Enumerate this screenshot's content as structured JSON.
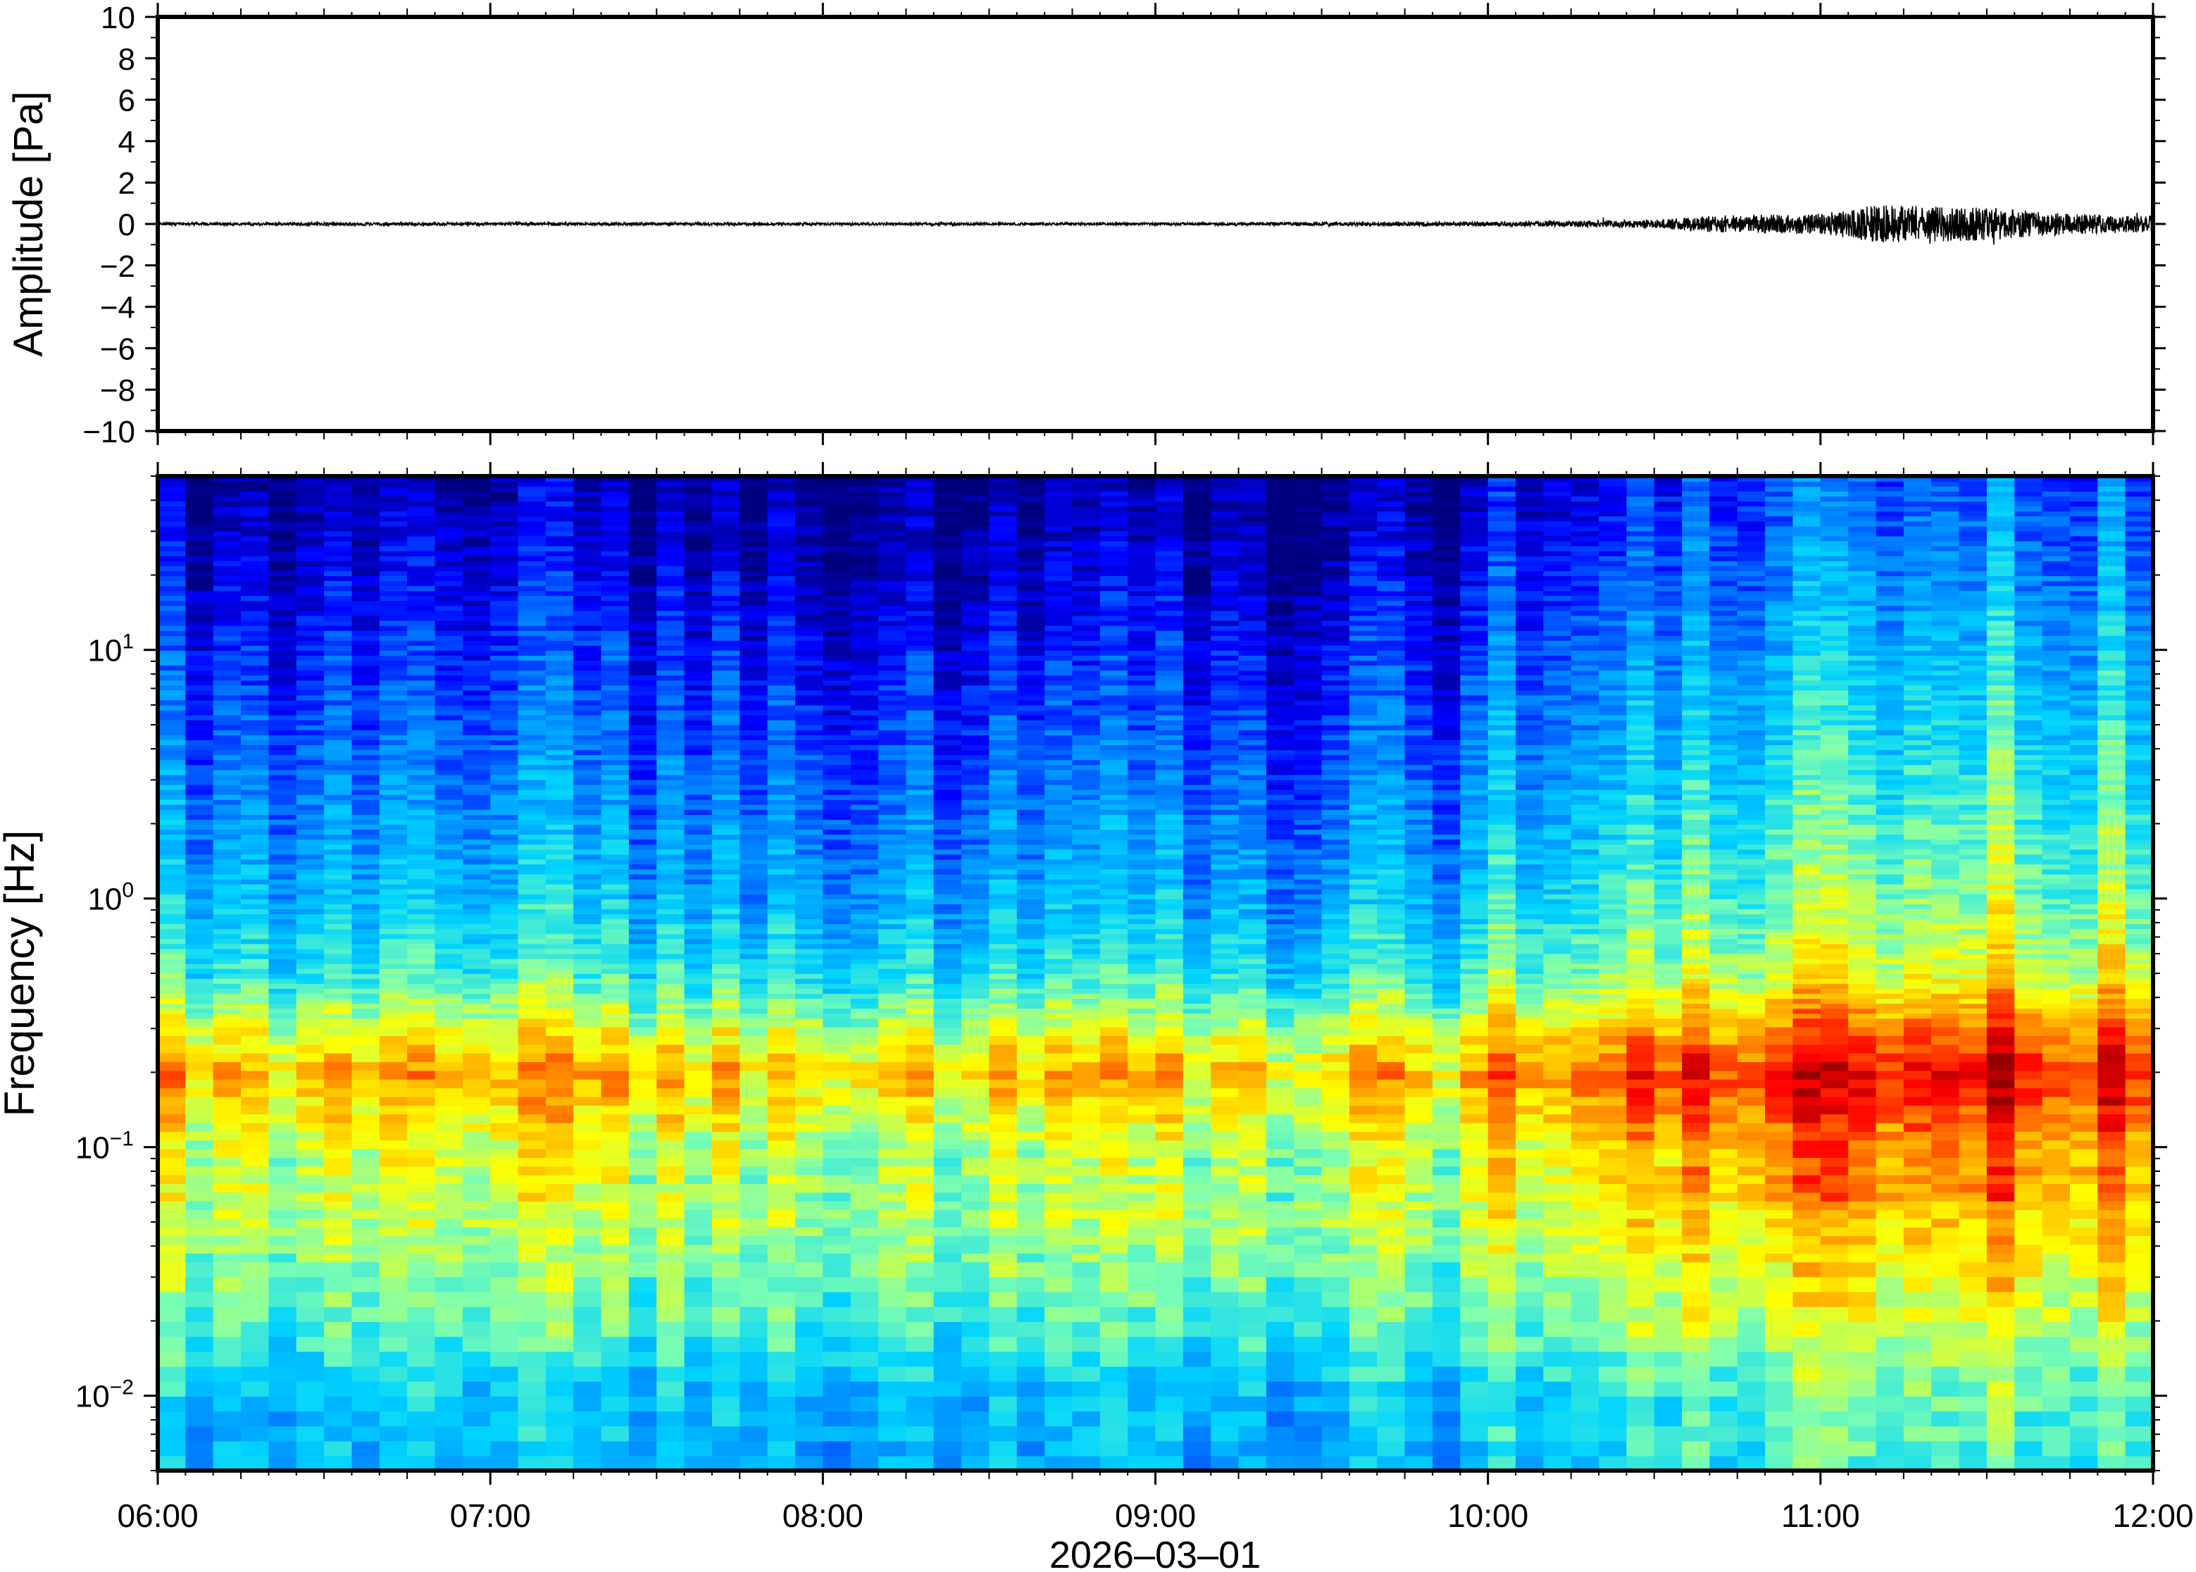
{
  "chart_data": [
    {
      "type": "line",
      "ylabel": "Amplitude [Pa]",
      "ylim": [
        -10,
        10
      ],
      "y_ticks": [
        10,
        8,
        6,
        4,
        2,
        0,
        -2,
        -4,
        -6,
        -8,
        -10
      ],
      "y_tick_labels": [
        "10",
        "8",
        "6",
        "4",
        "2",
        "0",
        "−2",
        "−4",
        "−6",
        "−8",
        "−10"
      ],
      "xlim": [
        "06:00",
        "12:00"
      ],
      "grid": false,
      "line_color": "#000000",
      "envelope": {
        "time": [
          "06:00",
          "07:00",
          "08:00",
          "09:00",
          "10:00",
          "10:30",
          "10:40",
          "11:00",
          "11:10",
          "11:30",
          "11:45",
          "12:00"
        ],
        "amplitude": [
          0.07,
          0.07,
          0.06,
          0.06,
          0.1,
          0.2,
          0.4,
          0.5,
          0.9,
          0.8,
          0.5,
          0.4
        ]
      }
    },
    {
      "type": "heatmap",
      "ylabel": "Frequency [Hz]",
      "xlabel": "2026–03–01",
      "y_scale": "log",
      "ylim": [
        0.005,
        50
      ],
      "y_ticks": [
        {
          "base": "10",
          "exp": "1"
        },
        {
          "base": "10",
          "exp": "0"
        },
        {
          "base": "10",
          "exp": "−1"
        },
        {
          "base": "10",
          "exp": "−2"
        }
      ],
      "x_tick_labels": [
        "06:00",
        "07:00",
        "08:00",
        "09:00",
        "10:00",
        "11:00",
        "12:00"
      ],
      "xlim": [
        "06:00",
        "12:00"
      ],
      "colormap": "jet",
      "colors": [
        "#00007f",
        "#0000ff",
        "#007fff",
        "#00d4ff",
        "#7fffaf",
        "#ffff00",
        "#ff8c00",
        "#ff0000",
        "#7f0000"
      ],
      "power_profile": {
        "time": [
          "06:00",
          "07:00",
          "08:00",
          "09:00",
          "09:55",
          "10:00",
          "10:30",
          "11:00",
          "11:30",
          "12:00"
        ],
        "level_offset": [
          0.0,
          0.02,
          0.0,
          -0.03,
          -0.02,
          0.08,
          0.12,
          0.2,
          0.22,
          0.18
        ]
      },
      "spectrum_profile": {
        "frequency": [
          0.005,
          0.01,
          0.02,
          0.05,
          0.1,
          0.2,
          0.3,
          0.5,
          1,
          3,
          10,
          30,
          50
        ],
        "relative_power": [
          0.32,
          0.35,
          0.46,
          0.55,
          0.57,
          0.7,
          0.58,
          0.42,
          0.33,
          0.24,
          0.15,
          0.06,
          0.03
        ]
      }
    }
  ]
}
